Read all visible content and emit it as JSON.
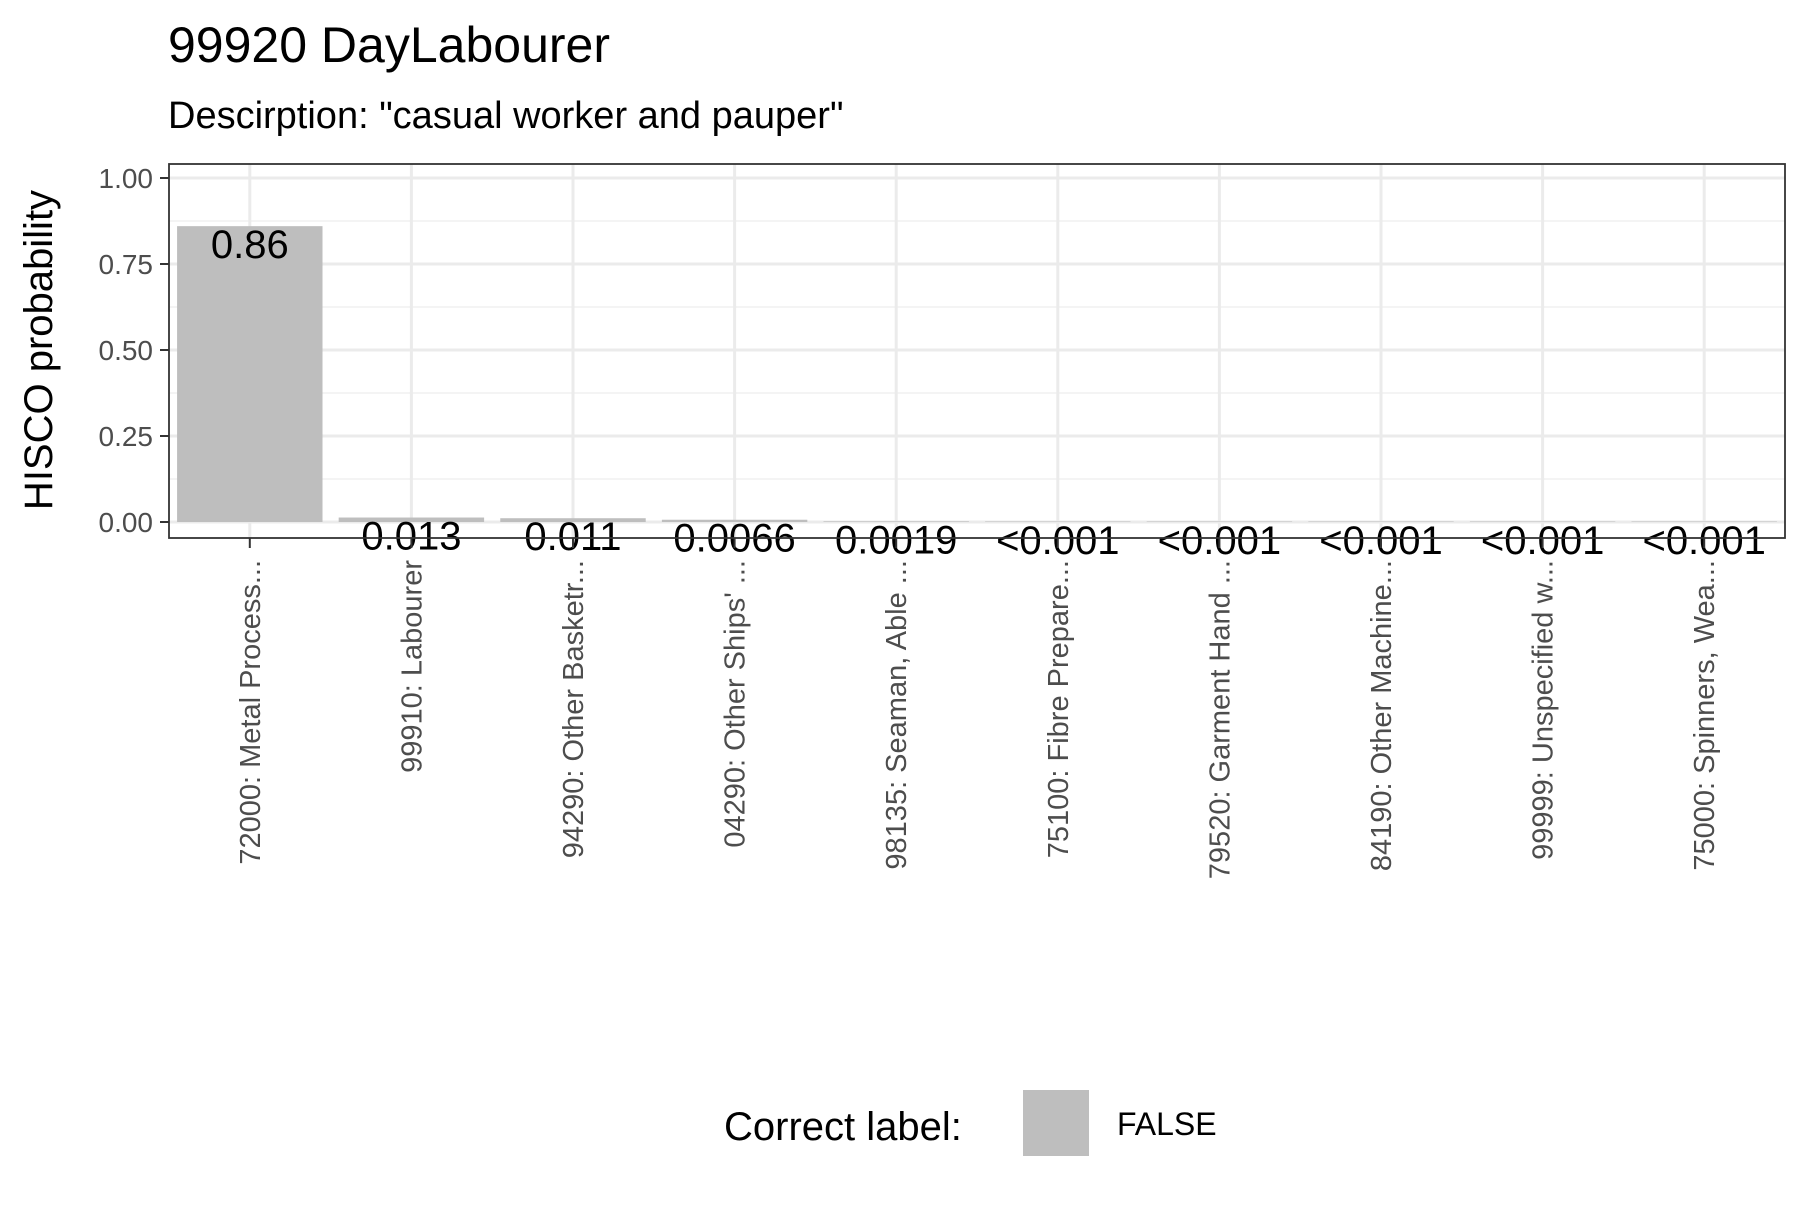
{
  "chart_data": {
    "type": "bar",
    "title": "99920 DayLabourer",
    "subtitle": "Descirption: \"casual worker and pauper\"",
    "xlabel": "",
    "ylabel": "HISCO probability",
    "ylim": [
      0,
      1.05
    ],
    "yticks": [
      {
        "value": 0,
        "label": "0.00"
      },
      {
        "value": 0.25,
        "label": "0.25"
      },
      {
        "value": 0.5,
        "label": "0.50"
      },
      {
        "value": 0.75,
        "label": "0.75"
      },
      {
        "value": 1,
        "label": "1.00"
      }
    ],
    "grid": true,
    "categories": [
      "72000: Metal Process...",
      "99910: Labourer",
      "94290: Other Basketr...",
      "04290: Other Ships' ...",
      "98135: Seaman, Able ...",
      "75100: Fibre Prepare...",
      "79520: Garment Hand ...",
      "84190: Other Machine...",
      "99999: Unspecified w...",
      "75000: Spinners, Wea..."
    ],
    "values": [
      0.86,
      0.013,
      0.011,
      0.0066,
      0.0019,
      0.0005,
      0.0005,
      0.0005,
      0.0005,
      0.0005
    ],
    "data_labels": [
      "0.86",
      "0.013",
      "0.011",
      "0.0066",
      "0.0019",
      "<0.001",
      "<0.001",
      "<0.001",
      "<0.001",
      "<0.001"
    ],
    "bar_color": "#bebebe",
    "legend": {
      "title": "Correct label:",
      "placement": "bottom",
      "entries": [
        {
          "label": "FALSE",
          "color": "#bebebe"
        }
      ]
    }
  }
}
